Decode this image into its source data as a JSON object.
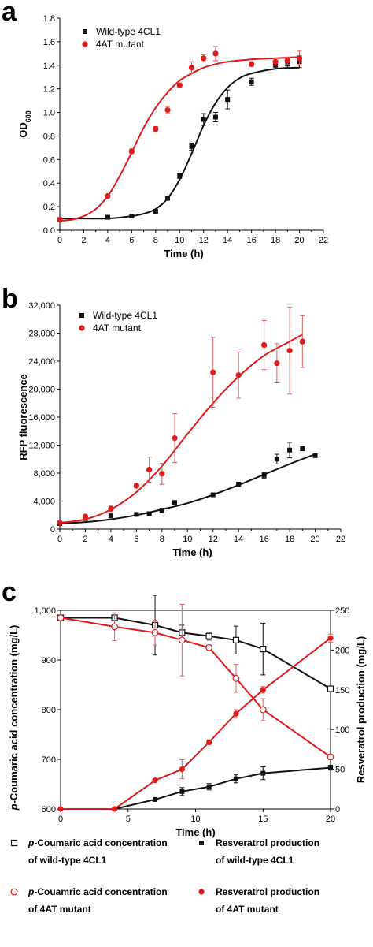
{
  "colors": {
    "wild_type": "#111111",
    "mutant": "#e0191b",
    "mutant_err": "#e06060"
  },
  "chart_data": [
    {
      "panel": "a",
      "type": "scatter",
      "xlabel": "Time (h)",
      "ylabel": "OD",
      "ylabel_sub": "600",
      "xlim": [
        0,
        22
      ],
      "ylim": [
        0,
        1.8
      ],
      "xticks": [
        "0",
        "2",
        "4",
        "6",
        "8",
        "10",
        "12",
        "14",
        "16",
        "18",
        "20",
        "22"
      ],
      "yticks": [
        "0.0",
        "0.2",
        "0.4",
        "0.6",
        "0.8",
        "1.0",
        "1.2",
        "1.4",
        "1.6",
        "1.8"
      ],
      "legend_position": "top-left",
      "series": [
        {
          "name": "Wild-type 4CL1",
          "marker": "square",
          "color": "#111111",
          "x": [
            0,
            4,
            6,
            8,
            9,
            10,
            11,
            12,
            13,
            14,
            16,
            18,
            19,
            20
          ],
          "y": [
            0.09,
            0.11,
            0.12,
            0.16,
            0.27,
            0.46,
            0.71,
            0.94,
            0.96,
            1.11,
            1.26,
            1.4,
            1.41,
            1.43
          ],
          "err": [
            0.01,
            0.01,
            0.01,
            0.01,
            0.01,
            0.02,
            0.03,
            0.05,
            0.04,
            0.08,
            0.03,
            0.03,
            0.04,
            0.05
          ],
          "fit_x": [
            0,
            2,
            4,
            6,
            7,
            8,
            9,
            10,
            11,
            12,
            13,
            14,
            15,
            16,
            18,
            20
          ],
          "fit_y": [
            0.1,
            0.1,
            0.1,
            0.12,
            0.14,
            0.18,
            0.27,
            0.43,
            0.65,
            0.89,
            1.08,
            1.21,
            1.29,
            1.33,
            1.37,
            1.38
          ]
        },
        {
          "name": "4AT mutant",
          "marker": "circle",
          "color": "#e0191b",
          "x": [
            0,
            4,
            6,
            8,
            9,
            10,
            11,
            12,
            13,
            16,
            18,
            19,
            20
          ],
          "y": [
            0.09,
            0.29,
            0.67,
            0.86,
            1.02,
            1.23,
            1.38,
            1.46,
            1.5,
            1.41,
            1.43,
            1.44,
            1.46
          ],
          "err": [
            0.01,
            0.01,
            0.02,
            0.02,
            0.03,
            0.02,
            0.05,
            0.03,
            0.06,
            0.02,
            0.03,
            0.03,
            0.06
          ],
          "fit_x": [
            0,
            1,
            2,
            3,
            4,
            5,
            6,
            7,
            8,
            9,
            10,
            11,
            12,
            13,
            14,
            16,
            18,
            20
          ],
          "fit_y": [
            0.08,
            0.09,
            0.12,
            0.18,
            0.29,
            0.46,
            0.66,
            0.87,
            1.04,
            1.17,
            1.27,
            1.33,
            1.38,
            1.41,
            1.43,
            1.45,
            1.46,
            1.47
          ]
        }
      ]
    },
    {
      "panel": "b",
      "type": "scatter",
      "xlabel": "Time (h)",
      "ylabel": "RFP fluorescence",
      "xlim": [
        0,
        22
      ],
      "ylim": [
        0,
        32000
      ],
      "xticks": [
        "0",
        "2",
        "4",
        "6",
        "8",
        "10",
        "12",
        "14",
        "16",
        "18",
        "20",
        "22"
      ],
      "yticks": [
        "0",
        "4,000",
        "8,000",
        "12,000",
        "16,000",
        "20,000",
        "24,000",
        "28,000",
        "32,000"
      ],
      "legend_position": "top-left",
      "series": [
        {
          "name": "Wild-type 4CL1",
          "marker": "square",
          "color": "#111111",
          "x": [
            0,
            2,
            4,
            6,
            7,
            8,
            9,
            12,
            14,
            16,
            17,
            18,
            19,
            20
          ],
          "y": [
            800,
            1500,
            1900,
            2100,
            2200,
            2700,
            3800,
            4900,
            6400,
            7700,
            10000,
            11300,
            11500,
            10500
          ],
          "err": [
            100,
            200,
            100,
            200,
            150,
            200,
            200,
            200,
            300,
            400,
            700,
            1100,
            300,
            200
          ],
          "fit_x": [
            0,
            2,
            4,
            6,
            8,
            10,
            12,
            14,
            16,
            18,
            20
          ],
          "fit_y": [
            800,
            1000,
            1400,
            2000,
            2800,
            3700,
            4900,
            6300,
            7800,
            9300,
            10700
          ]
        },
        {
          "name": "4AT mutant",
          "marker": "circle",
          "color": "#e0191b",
          "x": [
            0,
            2,
            4,
            6,
            7,
            8,
            9,
            12,
            14,
            16,
            17,
            18,
            19
          ],
          "y": [
            900,
            1800,
            2900,
            6200,
            8500,
            7900,
            13000,
            22400,
            22000,
            26300,
            23700,
            25500,
            26800
          ],
          "err": [
            200,
            300,
            400,
            300,
            1800,
            1500,
            3500,
            5000,
            3300,
            3500,
            2800,
            6200,
            3700
          ],
          "fit_x": [
            0,
            2,
            4,
            6,
            8,
            10,
            12,
            14,
            16,
            18,
            19
          ],
          "fit_y": [
            900,
            1400,
            2800,
            5300,
            9000,
            13600,
            18000,
            21800,
            24800,
            26800,
            27800
          ]
        }
      ]
    },
    {
      "panel": "c",
      "type": "line",
      "xlabel": "Time (h)",
      "ylabel_left": "p-Coumaric acid concentration (mg/L)",
      "ylabel_left_italic": "p",
      "ylabel_left_rest": "-Coumaric acid concentration (mg/L)",
      "ylabel_right": "Resveratrol production (mg/L)",
      "xlim": [
        0,
        20
      ],
      "ylim_left": [
        600,
        1000
      ],
      "ylim_right": [
        0,
        250
      ],
      "xticks": [
        "0",
        "5",
        "10",
        "15",
        "20"
      ],
      "yticks_left": [
        "600",
        "700",
        "800",
        "900",
        "1,000"
      ],
      "yticks_right": [
        "0",
        "50",
        "100",
        "150",
        "200",
        "250"
      ],
      "series": [
        {
          "name": "p-Coumaric acid concentration of wild-type 4CL1",
          "axis": "left",
          "marker": "open-square",
          "color": "#111111",
          "x": [
            0,
            4,
            7,
            9,
            11,
            13,
            15,
            20
          ],
          "y": [
            985,
            985,
            970,
            955,
            948,
            940,
            922,
            842
          ],
          "err": [
            5,
            5,
            60,
            15,
            8,
            28,
            52,
            5
          ]
        },
        {
          "name": "p-Couamric acid concentration of 4AT mutant",
          "axis": "left",
          "marker": "open-circle",
          "color": "#e0191b",
          "x": [
            0,
            4,
            7,
            9,
            11,
            13,
            15,
            20
          ],
          "y": [
            985,
            967,
            955,
            940,
            925,
            863,
            800,
            705
          ],
          "err": [
            5,
            28,
            25,
            72,
            5,
            28,
            22,
            5
          ]
        },
        {
          "name": "Resveratrol production of wild-type 4CL1",
          "axis": "right",
          "marker": "square",
          "color": "#111111",
          "x": [
            0,
            4,
            7,
            9,
            11,
            13,
            15,
            20
          ],
          "y": [
            0,
            0,
            12,
            22,
            28,
            38,
            45,
            52
          ],
          "err": [
            0,
            0,
            2,
            5,
            4,
            5,
            8,
            3
          ]
        },
        {
          "name": "Resveratrol production of 4AT mutant",
          "axis": "right",
          "marker": "circle",
          "color": "#e0191b",
          "x": [
            0,
            4,
            7,
            9,
            11,
            13,
            15,
            20
          ],
          "y": [
            0,
            0,
            36,
            50,
            84,
            120,
            150,
            215
          ],
          "err": [
            0,
            0,
            2,
            12,
            3,
            5,
            4,
            5
          ]
        }
      ],
      "legend": [
        {
          "lines": [
            "p-Coumaric acid concentration",
            "of wild-type 4CL1"
          ],
          "italic_prefix": "p",
          "line1_rest": "-Coumaric acid concentration",
          "marker": "open-square",
          "color": "#111111"
        },
        {
          "lines": [
            "Resveratrol production",
            "of wild-type 4CL1"
          ],
          "marker": "square",
          "color": "#111111"
        },
        {
          "lines": [
            "p-Couamric acid concentration",
            "of 4AT mutant"
          ],
          "italic_prefix": "p",
          "line1_rest": "-Couamric acid concentration",
          "marker": "open-circle",
          "color": "#e0191b"
        },
        {
          "lines": [
            "Resveratrol production",
            "of 4AT mutant"
          ],
          "marker": "circle",
          "color": "#e0191b"
        }
      ]
    }
  ]
}
